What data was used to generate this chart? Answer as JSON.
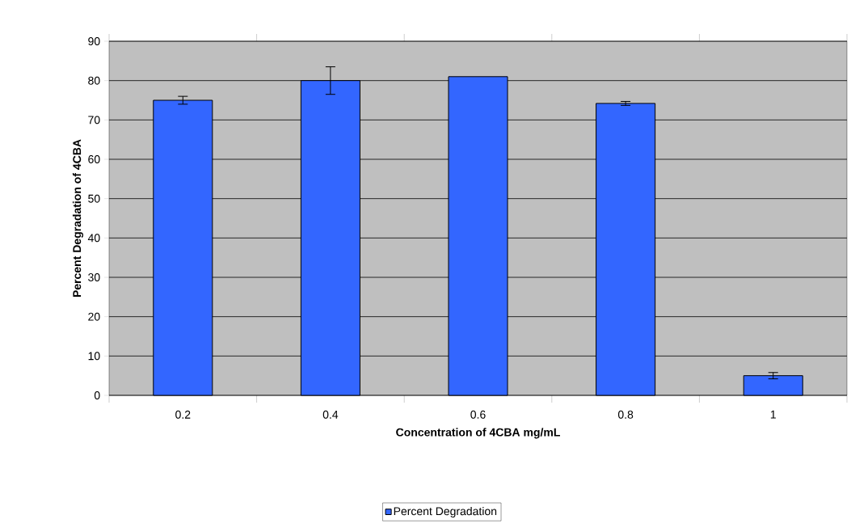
{
  "chart_data": {
    "type": "bar",
    "xlabel": "Concentration of 4CBA mg/mL",
    "ylabel": "Percent Degradation of 4CBA",
    "categories": [
      "0.2",
      "0.4",
      "0.6",
      "0.8",
      "1"
    ],
    "series": [
      {
        "name": "Percent Degradation",
        "color": "#3366ff",
        "values": [
          75,
          80,
          81,
          74.2,
          5
        ],
        "errors": [
          1,
          3.5,
          null,
          0.5,
          0.8
        ]
      }
    ],
    "ylim": [
      0,
      90
    ],
    "yticks": [
      0,
      10,
      20,
      30,
      40,
      50,
      60,
      70,
      80,
      90
    ],
    "grid": "y",
    "legend": "bottom"
  }
}
